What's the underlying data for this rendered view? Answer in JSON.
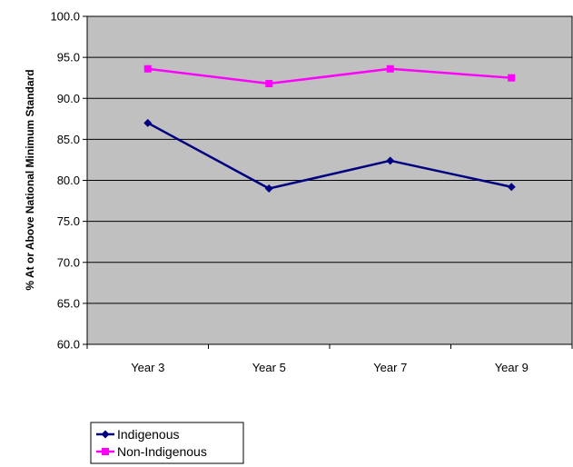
{
  "chart_data": {
    "type": "line",
    "title": "",
    "xlabel": "",
    "ylabel": "% At or Above National Minimum Standard",
    "categories": [
      "Year 3",
      "Year 5",
      "Year 7",
      "Year 9"
    ],
    "ylim": [
      60.0,
      100.0
    ],
    "yticks": [
      "60.0",
      "65.0",
      "70.0",
      "75.0",
      "80.0",
      "85.0",
      "90.0",
      "95.0",
      "100.0"
    ],
    "grid": true,
    "plot_background": "#c0c0c0",
    "legend_position": "bottom-left",
    "series": [
      {
        "name": "Indigenous",
        "values": [
          87.0,
          79.0,
          82.4,
          79.2
        ],
        "color": "#000080",
        "marker": "diamond"
      },
      {
        "name": "Non-Indigenous",
        "values": [
          93.6,
          91.8,
          93.6,
          92.5
        ],
        "color": "#ff00ff",
        "marker": "square"
      }
    ]
  }
}
